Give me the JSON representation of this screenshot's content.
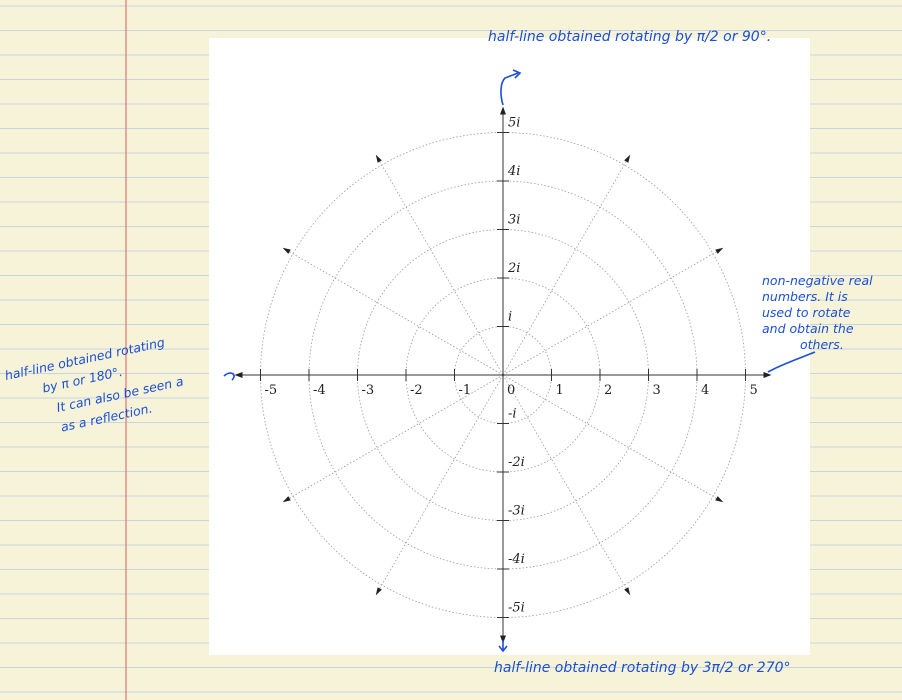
{
  "diagram": {
    "real_ticks": [
      "-5",
      "-4",
      "-3",
      "-2",
      "-1",
      "0",
      "1",
      "2",
      "3",
      "4",
      "5"
    ],
    "imag_ticks": [
      "5i",
      "4i",
      "3i",
      "2i",
      "i",
      "-i",
      "-2i",
      "-3i",
      "-4i",
      "-5i"
    ],
    "circle_radii": [
      1,
      2,
      3,
      4,
      5
    ],
    "ray_count": 12
  },
  "annotations": {
    "top": "half-line obtained rotating by π/2 or 90°.",
    "right": [
      "non-negative real",
      "numbers. It is",
      "used to rotate",
      "and obtain the",
      "others."
    ],
    "left": [
      "half-line obtained rotating",
      "by π or 180°.",
      "It can also be seen a",
      "as a reflection."
    ],
    "bottom": "half-line obtained rotating by 3π/2 or 270°"
  },
  "colors": {
    "ink": "#1a4fd6",
    "paper": "#f7f3d8",
    "rule_line": "#c7d5e3",
    "margin_line": "#e07878",
    "axis": "#333333",
    "grid": "#9a9a9a"
  }
}
